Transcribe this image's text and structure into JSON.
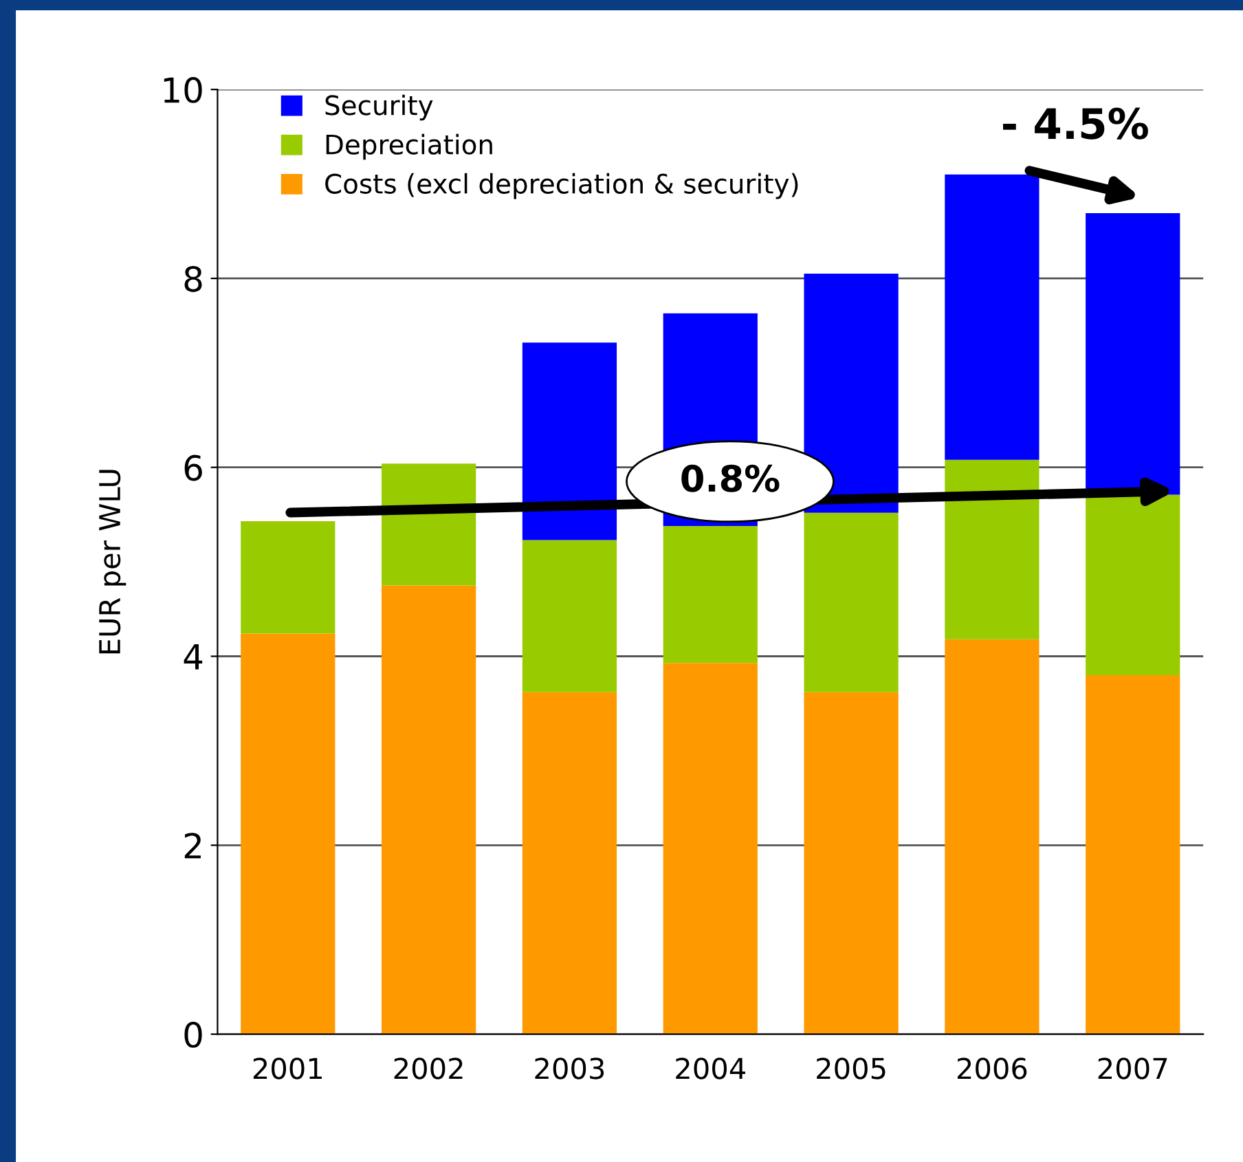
{
  "chart_data": {
    "type": "bar",
    "stacked": true,
    "ylabel": "EUR per WLU",
    "categories": [
      "2001",
      "2002",
      "2003",
      "2004",
      "2005",
      "2006",
      "2007"
    ],
    "series": [
      {
        "name": "Costs (excl depreciation & security)",
        "color": "#ff9900",
        "values": [
          4.24,
          4.75,
          3.62,
          3.93,
          3.62,
          4.18,
          3.8
        ]
      },
      {
        "name": "Depreciation",
        "color": "#99cc00",
        "values": [
          1.19,
          1.29,
          1.61,
          1.45,
          1.9,
          1.9,
          1.91
        ]
      },
      {
        "name": "Security",
        "color": "#0000ff",
        "values": [
          null,
          null,
          2.09,
          2.25,
          2.53,
          3.02,
          2.98
        ]
      }
    ],
    "ylim": [
      0,
      10
    ],
    "yticks": [
      0,
      2,
      4,
      6,
      8,
      10
    ],
    "grid": "y",
    "legend": "top left",
    "annotations": [
      "0.8%",
      "- 4.5%"
    ]
  }
}
